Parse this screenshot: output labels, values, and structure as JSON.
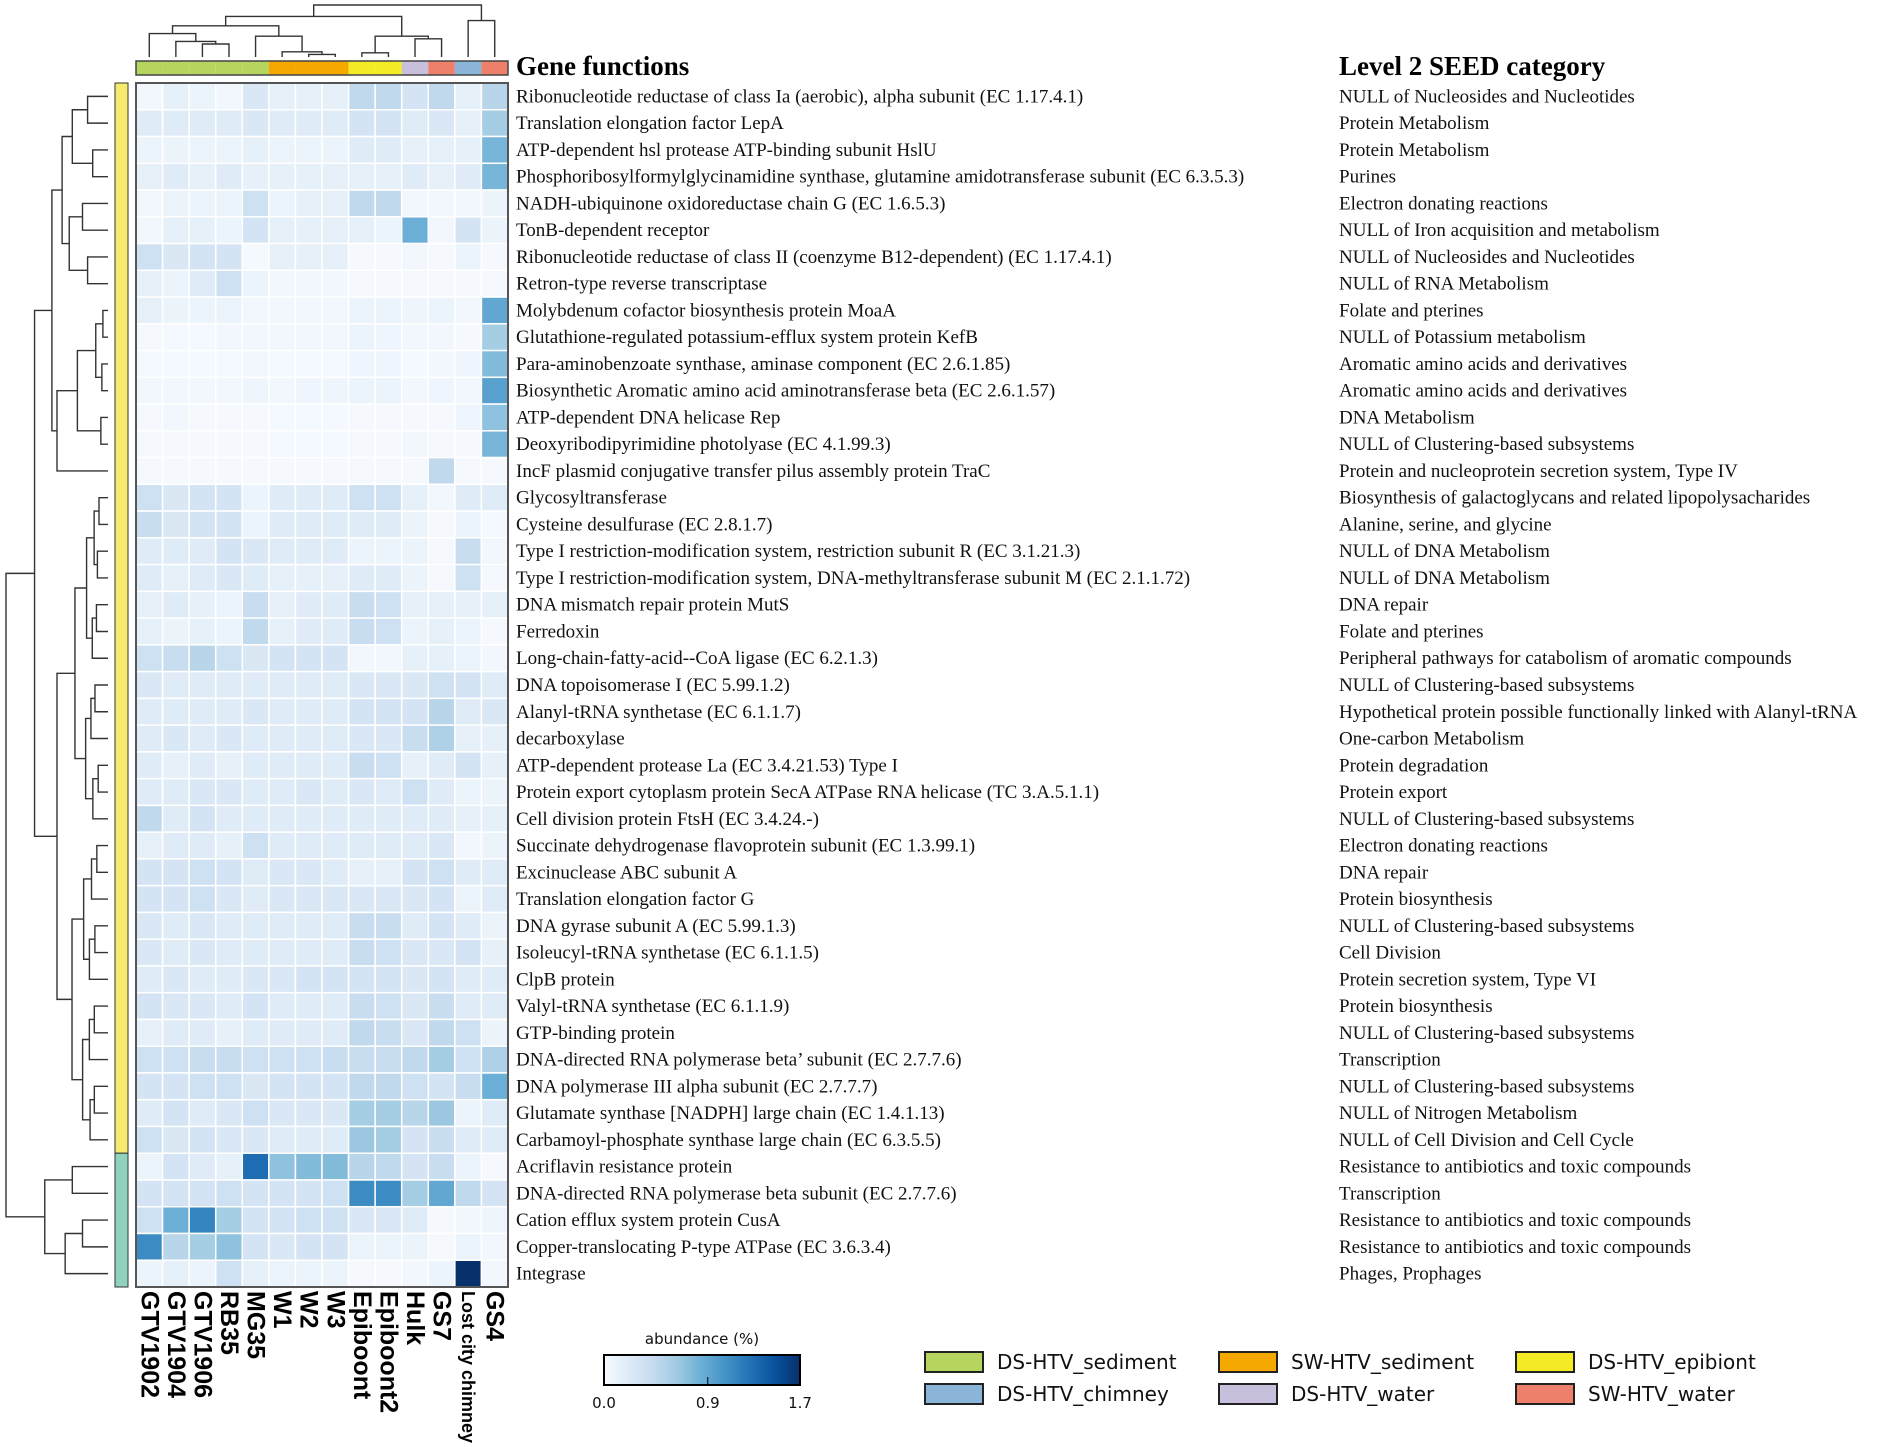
{
  "chart_data": {
    "type": "heatmap",
    "title": "",
    "row_header": "Gene functions",
    "category_header": "Level 2 SEED category",
    "columns": [
      "GTV1902",
      "GTV1904",
      "GTV1906",
      "RB35",
      "MG35",
      "W1",
      "W2",
      "W3",
      "Epiboont",
      "Epiboont2",
      "Hulk",
      "GS7",
      "Lost city chimney",
      "GS4"
    ],
    "column_groups": [
      "DS-HTV_sediment",
      "DS-HTV_sediment",
      "DS-HTV_sediment",
      "DS-HTV_sediment",
      "DS-HTV_sediment",
      "SW-HTV_sediment",
      "SW-HTV_sediment",
      "SW-HTV_sediment",
      "DS-HTV_epibiont",
      "DS-HTV_epibiont",
      "DS-HTV_water",
      "SW-HTV_water",
      "DS-HTV_chimney",
      "SW-HTV_water"
    ],
    "rows": [
      "Ribonucleotide reductase of class Ia (aerobic), alpha subunit (EC 1.17.4.1)",
      "Translation elongation factor LepA",
      "ATP-dependent hsl protease ATP-binding subunit HslU",
      "Phosphoribosylformylglycinamidine synthase, glutamine amidotransferase subunit (EC 6.3.5.3)",
      "NADH-ubiquinone oxidoreductase chain G (EC 1.6.5.3)",
      "TonB-dependent receptor",
      "Ribonucleotide reductase of class II (coenzyme B12-dependent) (EC 1.17.4.1)",
      "Retron-type reverse transcriptase",
      "Molybdenum cofactor biosynthesis protein MoaA",
      "Glutathione-regulated potassium-efflux system protein KefB",
      "Para-aminobenzoate synthase, aminase component (EC 2.6.1.85)",
      "Biosynthetic Aromatic amino acid aminotransferase beta (EC 2.6.1.57)",
      "ATP-dependent DNA helicase Rep",
      "Deoxyribodipyrimidine photolyase (EC 4.1.99.3)",
      "IncF plasmid conjugative transfer pilus assembly protein TraC",
      "Glycosyltransferase",
      "Cysteine desulfurase (EC 2.8.1.7)",
      "Type I restriction-modification system, restriction subunit R (EC 3.1.21.3)",
      "Type I restriction-modification system, DNA-methyltransferase subunit M (EC 2.1.1.72)",
      "DNA mismatch repair protein MutS",
      "Ferredoxin",
      "Long-chain-fatty-acid--CoA ligase (EC 6.2.1.3)",
      "DNA topoisomerase I (EC 5.99.1.2)",
      "Alanyl-tRNA synthetase (EC 6.1.1.7)",
      "decarboxylase",
      "ATP-dependent protease La (EC 3.4.21.53) Type I",
      "Protein export cytoplasm protein SecA ATPase RNA helicase (TC 3.A.5.1.1)",
      "Cell division protein FtsH (EC 3.4.24.-)",
      "Succinate dehydrogenase flavoprotein subunit (EC 1.3.99.1)",
      "Excinuclease ABC subunit A",
      "Translation elongation factor G",
      "DNA gyrase subunit A (EC 5.99.1.3)",
      "Isoleucyl-tRNA synthetase (EC 6.1.1.5)",
      "ClpB protein",
      "Valyl-tRNA synthetase (EC 6.1.1.9)",
      "GTP-binding protein",
      "DNA-directed RNA polymerase beta’ subunit (EC 2.7.7.6)",
      "DNA polymerase III alpha subunit (EC 2.7.7.7)",
      "Glutamate synthase [NADPH] large chain (EC 1.4.1.13)",
      "Carbamoyl-phosphate synthase large chain (EC 6.3.5.5)",
      "Acriflavin resistance protein",
      "DNA-directed RNA polymerase beta subunit (EC 2.7.7.6)",
      "Cation efflux system protein CusA",
      "Copper-translocating P-type ATPase (EC 3.6.3.4)",
      "Integrase"
    ],
    "seed_categories": [
      "NULL of Nucleosides and Nucleotides",
      "Protein Metabolism",
      "Protein Metabolism",
      "Purines",
      "Electron donating reactions",
      "NULL of Iron acquisition and metabolism",
      "NULL of Nucleosides and Nucleotides",
      "NULL of RNA Metabolism",
      "Folate and pterines",
      "NULL of Potassium metabolism",
      "Aromatic amino acids and derivatives",
      "Aromatic amino acids and derivatives",
      "DNA Metabolism",
      "NULL of Clustering-based subsystems",
      "Protein and nucleoprotein secretion system, Type IV",
      "Biosynthesis of galactoglycans and related lipopolysacharides",
      "Alanine, serine, and glycine",
      "NULL of DNA Metabolism",
      "NULL of DNA Metabolism",
      "DNA repair",
      "Folate and pterines",
      "Peripheral pathways for catabolism of aromatic compounds",
      "NULL of Clustering-based subsystems",
      "Hypothetical protein possible functionally linked with Alanyl-tRNA",
      "One-carbon Metabolism",
      "Protein degradation",
      "Protein export",
      "NULL of Clustering-based subsystems",
      "Electron donating reactions",
      "DNA repair",
      "Protein biosynthesis",
      "NULL of Clustering-based subsystems",
      "Cell Division",
      "Protein secretion system, Type VI",
      "Protein biosynthesis",
      "NULL of Clustering-based subsystems",
      "Transcription",
      "NULL of Clustering-based subsystems",
      "NULL of Nitrogen Metabolism",
      "NULL of Cell Division and Cell Cycle",
      "Resistance to antibiotics and toxic compounds",
      "Transcription",
      "Resistance to antibiotics and toxic compounds",
      "Resistance to antibiotics and toxic compounds",
      "Phages, Prophages"
    ],
    "row_clusters": [
      0,
      0,
      0,
      0,
      0,
      0,
      0,
      0,
      0,
      0,
      0,
      0,
      0,
      0,
      0,
      0,
      0,
      0,
      0,
      0,
      0,
      0,
      0,
      0,
      0,
      0,
      0,
      0,
      0,
      0,
      0,
      0,
      0,
      0,
      0,
      0,
      0,
      0,
      0,
      0,
      1,
      1,
      1,
      1,
      1
    ],
    "row_cluster_colors": [
      "#f7eb6e",
      "#8fd3bf"
    ],
    "values": [
      [
        0.05,
        0.15,
        0.1,
        0.05,
        0.25,
        0.15,
        0.15,
        0.15,
        0.45,
        0.45,
        0.3,
        0.45,
        0.15,
        0.5
      ],
      [
        0.2,
        0.2,
        0.2,
        0.2,
        0.25,
        0.2,
        0.2,
        0.2,
        0.3,
        0.3,
        0.2,
        0.25,
        0.15,
        0.6
      ],
      [
        0.1,
        0.1,
        0.1,
        0.1,
        0.15,
        0.1,
        0.1,
        0.1,
        0.2,
        0.2,
        0.15,
        0.15,
        0.15,
        0.8
      ],
      [
        0.15,
        0.2,
        0.15,
        0.2,
        0.15,
        0.15,
        0.15,
        0.15,
        0.15,
        0.15,
        0.2,
        0.15,
        0.2,
        0.8
      ],
      [
        0.05,
        0.1,
        0.1,
        0.1,
        0.35,
        0.1,
        0.15,
        0.15,
        0.45,
        0.45,
        0.05,
        0.05,
        0.05,
        0.1
      ],
      [
        0.05,
        0.15,
        0.15,
        0.1,
        0.3,
        0.15,
        0.15,
        0.15,
        0.15,
        0.1,
        0.85,
        0.05,
        0.3,
        0.1
      ],
      [
        0.35,
        0.25,
        0.3,
        0.3,
        0.02,
        0.15,
        0.15,
        0.15,
        0.02,
        0.02,
        0.05,
        0.02,
        0.1,
        0.02
      ],
      [
        0.15,
        0.1,
        0.2,
        0.35,
        0.1,
        0.05,
        0.05,
        0.05,
        0.02,
        0.02,
        0.02,
        0.02,
        0.02,
        0.02
      ],
      [
        0.15,
        0.1,
        0.1,
        0.1,
        0.05,
        0.05,
        0.05,
        0.05,
        0.1,
        0.1,
        0.08,
        0.1,
        0.05,
        0.9
      ],
      [
        0.02,
        0.03,
        0.03,
        0.05,
        0.05,
        0.05,
        0.05,
        0.05,
        0.1,
        0.08,
        0.05,
        0.05,
        0.02,
        0.6
      ],
      [
        0.03,
        0.03,
        0.03,
        0.03,
        0.05,
        0.03,
        0.03,
        0.03,
        0.08,
        0.08,
        0.03,
        0.05,
        0.08,
        0.75
      ],
      [
        0.05,
        0.05,
        0.05,
        0.05,
        0.08,
        0.05,
        0.08,
        0.08,
        0.1,
        0.1,
        0.05,
        0.08,
        0.05,
        0.95
      ],
      [
        0.02,
        0.05,
        0.02,
        0.02,
        0.02,
        0.03,
        0.03,
        0.03,
        0.02,
        0.02,
        0.02,
        0.02,
        0.08,
        0.7
      ],
      [
        0.02,
        0.02,
        0.02,
        0.02,
        0.02,
        0.03,
        0.03,
        0.03,
        0.02,
        0.02,
        0.05,
        0.02,
        0.02,
        0.8
      ],
      [
        0.02,
        0.02,
        0.02,
        0.02,
        0.02,
        0.02,
        0.02,
        0.02,
        0.02,
        0.02,
        0.02,
        0.45,
        0.02,
        0.02
      ],
      [
        0.35,
        0.25,
        0.3,
        0.3,
        0.1,
        0.2,
        0.2,
        0.2,
        0.35,
        0.35,
        0.15,
        0.05,
        0.2,
        0.2
      ],
      [
        0.4,
        0.25,
        0.3,
        0.3,
        0.1,
        0.2,
        0.2,
        0.2,
        0.2,
        0.2,
        0.1,
        0.02,
        0.1,
        0.03
      ],
      [
        0.2,
        0.2,
        0.2,
        0.3,
        0.25,
        0.2,
        0.2,
        0.2,
        0.1,
        0.1,
        0.1,
        0.02,
        0.4,
        0.05
      ],
      [
        0.2,
        0.15,
        0.2,
        0.25,
        0.2,
        0.15,
        0.15,
        0.15,
        0.2,
        0.2,
        0.1,
        0.02,
        0.35,
        0.02
      ],
      [
        0.15,
        0.2,
        0.15,
        0.1,
        0.4,
        0.15,
        0.2,
        0.2,
        0.4,
        0.35,
        0.15,
        0.15,
        0.15,
        0.15
      ],
      [
        0.15,
        0.1,
        0.15,
        0.1,
        0.45,
        0.15,
        0.2,
        0.2,
        0.4,
        0.35,
        0.1,
        0.15,
        0.1,
        0.02
      ],
      [
        0.35,
        0.4,
        0.5,
        0.35,
        0.25,
        0.3,
        0.3,
        0.3,
        0.05,
        0.05,
        0.15,
        0.15,
        0.1,
        0.05
      ],
      [
        0.25,
        0.2,
        0.2,
        0.2,
        0.2,
        0.2,
        0.2,
        0.2,
        0.25,
        0.25,
        0.25,
        0.35,
        0.3,
        0.2
      ],
      [
        0.2,
        0.2,
        0.2,
        0.2,
        0.25,
        0.2,
        0.2,
        0.2,
        0.3,
        0.3,
        0.3,
        0.5,
        0.2,
        0.25
      ],
      [
        0.2,
        0.25,
        0.2,
        0.25,
        0.2,
        0.2,
        0.2,
        0.2,
        0.25,
        0.25,
        0.4,
        0.55,
        0.15,
        0.15
      ],
      [
        0.2,
        0.15,
        0.2,
        0.15,
        0.2,
        0.2,
        0.2,
        0.2,
        0.4,
        0.35,
        0.15,
        0.2,
        0.3,
        0.15
      ],
      [
        0.2,
        0.2,
        0.25,
        0.25,
        0.2,
        0.2,
        0.25,
        0.2,
        0.25,
        0.2,
        0.35,
        0.2,
        0.1,
        0.1
      ],
      [
        0.45,
        0.2,
        0.3,
        0.2,
        0.2,
        0.2,
        0.2,
        0.2,
        0.2,
        0.2,
        0.2,
        0.2,
        0.15,
        0.15
      ],
      [
        0.15,
        0.2,
        0.2,
        0.15,
        0.35,
        0.2,
        0.2,
        0.2,
        0.2,
        0.2,
        0.2,
        0.25,
        0.05,
        0.1
      ],
      [
        0.3,
        0.3,
        0.35,
        0.3,
        0.2,
        0.25,
        0.25,
        0.2,
        0.15,
        0.15,
        0.3,
        0.35,
        0.2,
        0.2
      ],
      [
        0.3,
        0.3,
        0.35,
        0.25,
        0.2,
        0.25,
        0.25,
        0.25,
        0.25,
        0.25,
        0.25,
        0.3,
        0.1,
        0.2
      ],
      [
        0.25,
        0.2,
        0.25,
        0.2,
        0.2,
        0.2,
        0.2,
        0.2,
        0.4,
        0.4,
        0.2,
        0.3,
        0.2,
        0.1
      ],
      [
        0.25,
        0.2,
        0.25,
        0.2,
        0.2,
        0.2,
        0.2,
        0.2,
        0.4,
        0.35,
        0.25,
        0.25,
        0.3,
        0.15
      ],
      [
        0.2,
        0.25,
        0.2,
        0.2,
        0.25,
        0.25,
        0.3,
        0.3,
        0.3,
        0.3,
        0.25,
        0.3,
        0.2,
        0.2
      ],
      [
        0.3,
        0.25,
        0.25,
        0.2,
        0.3,
        0.2,
        0.2,
        0.2,
        0.4,
        0.35,
        0.25,
        0.4,
        0.2,
        0.2
      ],
      [
        0.15,
        0.2,
        0.2,
        0.15,
        0.2,
        0.2,
        0.2,
        0.2,
        0.45,
        0.4,
        0.25,
        0.45,
        0.35,
        0.1
      ],
      [
        0.35,
        0.35,
        0.4,
        0.4,
        0.35,
        0.35,
        0.35,
        0.4,
        0.4,
        0.4,
        0.45,
        0.6,
        0.35,
        0.55
      ],
      [
        0.3,
        0.3,
        0.35,
        0.35,
        0.25,
        0.3,
        0.3,
        0.3,
        0.45,
        0.45,
        0.35,
        0.3,
        0.4,
        0.85
      ],
      [
        0.2,
        0.3,
        0.2,
        0.25,
        0.35,
        0.25,
        0.25,
        0.25,
        0.6,
        0.6,
        0.5,
        0.65,
        0.1,
        0.2
      ],
      [
        0.35,
        0.25,
        0.3,
        0.25,
        0.25,
        0.2,
        0.2,
        0.2,
        0.65,
        0.6,
        0.3,
        0.4,
        0.2,
        0.2
      ],
      [
        0.1,
        0.3,
        0.2,
        0.15,
        1.3,
        0.7,
        0.75,
        0.75,
        0.5,
        0.45,
        0.3,
        0.4,
        0.1,
        0.02
      ],
      [
        0.3,
        0.3,
        0.3,
        0.35,
        0.3,
        0.3,
        0.3,
        0.35,
        1.1,
        1.1,
        0.6,
        0.9,
        0.45,
        0.3
      ],
      [
        0.35,
        0.85,
        1.15,
        0.6,
        0.3,
        0.3,
        0.35,
        0.35,
        0.25,
        0.25,
        0.2,
        0.02,
        0.05,
        0.08
      ],
      [
        1.1,
        0.5,
        0.6,
        0.7,
        0.3,
        0.25,
        0.3,
        0.3,
        0.1,
        0.1,
        0.1,
        0.02,
        0.1,
        0.05
      ],
      [
        0.1,
        0.15,
        0.1,
        0.35,
        0.15,
        0.1,
        0.1,
        0.1,
        0.02,
        0.02,
        0.05,
        0.1,
        1.7,
        0.05
      ]
    ],
    "colorbar": {
      "label": "abundance (%)",
      "range": [
        0.0,
        1.7
      ],
      "ticks": [
        "0.0",
        "0.9",
        "1.7"
      ],
      "tick_values": [
        0.0,
        0.9,
        1.7
      ],
      "colormap": "Blues"
    },
    "legend": {
      "placement": "bottom",
      "items": [
        {
          "label": "DS-HTV_sediment",
          "color": "#b5d55e"
        },
        {
          "label": "SW-HTV_sediment",
          "color": "#f5a800"
        },
        {
          "label": "DS-HTV_epibiont",
          "color": "#f3eb24"
        },
        {
          "label": "DS-HTV_chimney",
          "color": "#8ab4d8"
        },
        {
          "label": "DS-HTV_water",
          "color": "#c8bfdc"
        },
        {
          "label": "SW-HTV_water",
          "color": "#ee7f6b"
        }
      ]
    }
  }
}
